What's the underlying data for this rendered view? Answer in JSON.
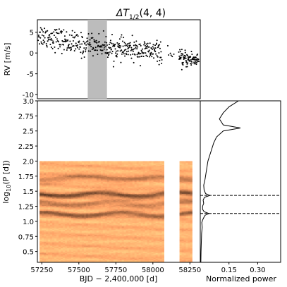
{
  "figure": {
    "title_main": "ΔT",
    "title_sub": "1/2",
    "title_args": "(4, 4)"
  },
  "chart_data": [
    {
      "panel": "rv",
      "type": "scatter",
      "ylabel": "RV [m/s]",
      "xlim": [
        57220,
        58320
      ],
      "ylim": [
        -11,
        8
      ],
      "yticks": [
        5,
        0,
        -5,
        -10
      ],
      "highlight_span": [
        57560,
        57690
      ],
      "highlight_color": "#bcbcbc",
      "marker_color": "#000000",
      "segments": [
        {
          "x_start": 57225,
          "x_end": 57555,
          "n": 150,
          "mean_start": 4.5,
          "mean_end": 1.5,
          "scatter": 2.0
        },
        {
          "x_start": 57560,
          "x_end": 57690,
          "n": 60,
          "mean_start": 2.5,
          "mean_end": 1.5,
          "scatter": 1.8
        },
        {
          "x_start": 57690,
          "x_end": 58060,
          "n": 190,
          "mean_start": 1.2,
          "mean_end": 0.2,
          "scatter": 1.8
        },
        {
          "x_start": 58100,
          "x_end": 58140,
          "n": 6,
          "mean_start": 0.0,
          "mean_end": -0.5,
          "scatter": 1.2
        },
        {
          "x_start": 58175,
          "x_end": 58310,
          "n": 90,
          "mean_start": -1.5,
          "mean_end": -1.5,
          "scatter": 1.4
        }
      ]
    },
    {
      "panel": "heatmap",
      "type": "heatmap",
      "xlabel": "BJD − 2,400,000 [d]",
      "ylabel_prefix": "log",
      "ylabel_sub": "10",
      "ylabel_suffix": "(P [d])",
      "xlim": [
        57220,
        58320
      ],
      "ylim": [
        0.32,
        3.0
      ],
      "xticks": [
        57250,
        57500,
        57750,
        58000,
        58250
      ],
      "xtick_labels": [
        "57250",
        "57500",
        "57750",
        "58000",
        "58250"
      ],
      "yticks": [
        0.5,
        0.75,
        1.0,
        1.25,
        1.5,
        1.75,
        2.0,
        2.25,
        2.5,
        2.75,
        3.0
      ],
      "ytick_labels": [
        "0.5",
        "0.75",
        "1.0",
        "1.25",
        "1.5",
        "1.75",
        "2.0",
        "2.25",
        "2.5",
        "2.75",
        "3.0"
      ],
      "data_blocks": [
        {
          "x_start": 57235,
          "x_end": 58075,
          "y_min": 0.32,
          "y_max": 2.0
        },
        {
          "x_start": 58180,
          "x_end": 58265,
          "y_min": 0.32,
          "y_max": 2.0
        }
      ],
      "colormap": "copper",
      "dark_bands": [
        {
          "logP": 1.45,
          "strength": 0.9,
          "width": 0.045
        },
        {
          "logP": 1.12,
          "strength": 0.8,
          "width": 0.04
        },
        {
          "logP": 1.3,
          "strength": 0.5,
          "width": 0.05
        },
        {
          "logP": 1.72,
          "strength": 0.45,
          "width": 0.06
        }
      ]
    },
    {
      "panel": "periodogram",
      "type": "line",
      "xlabel": "Normalized power",
      "xlim": [
        0.0,
        0.42
      ],
      "xticks": [
        0.15,
        0.3
      ],
      "xtick_labels": [
        "0.15",
        "0.30"
      ],
      "ylim": [
        0.32,
        3.0
      ],
      "line_color": "#000000",
      "dashed_marks_logP": [
        1.43,
        1.13
      ],
      "points": [
        [
          0.32,
          0.003
        ],
        [
          0.5,
          0.004
        ],
        [
          0.6,
          0.005
        ],
        [
          0.7,
          0.006
        ],
        [
          0.8,
          0.007
        ],
        [
          0.9,
          0.01
        ],
        [
          0.98,
          0.008
        ],
        [
          1.02,
          0.012
        ],
        [
          1.06,
          0.018
        ],
        [
          1.1,
          0.025
        ],
        [
          1.13,
          0.045
        ],
        [
          1.16,
          0.02
        ],
        [
          1.2,
          0.012
        ],
        [
          1.25,
          0.012
        ],
        [
          1.3,
          0.018
        ],
        [
          1.35,
          0.015
        ],
        [
          1.4,
          0.022
        ],
        [
          1.43,
          0.05
        ],
        [
          1.46,
          0.028
        ],
        [
          1.52,
          0.02
        ],
        [
          1.6,
          0.018
        ],
        [
          1.7,
          0.025
        ],
        [
          1.8,
          0.03
        ],
        [
          1.9,
          0.035
        ],
        [
          2.0,
          0.04
        ],
        [
          2.05,
          0.045
        ],
        [
          2.1,
          0.05
        ],
        [
          2.2,
          0.06
        ],
        [
          2.3,
          0.07
        ],
        [
          2.4,
          0.085
        ],
        [
          2.5,
          0.12
        ],
        [
          2.55,
          0.21
        ],
        [
          2.6,
          0.12
        ],
        [
          2.7,
          0.1
        ],
        [
          2.8,
          0.12
        ],
        [
          2.9,
          0.15
        ],
        [
          3.0,
          0.2
        ]
      ]
    }
  ]
}
